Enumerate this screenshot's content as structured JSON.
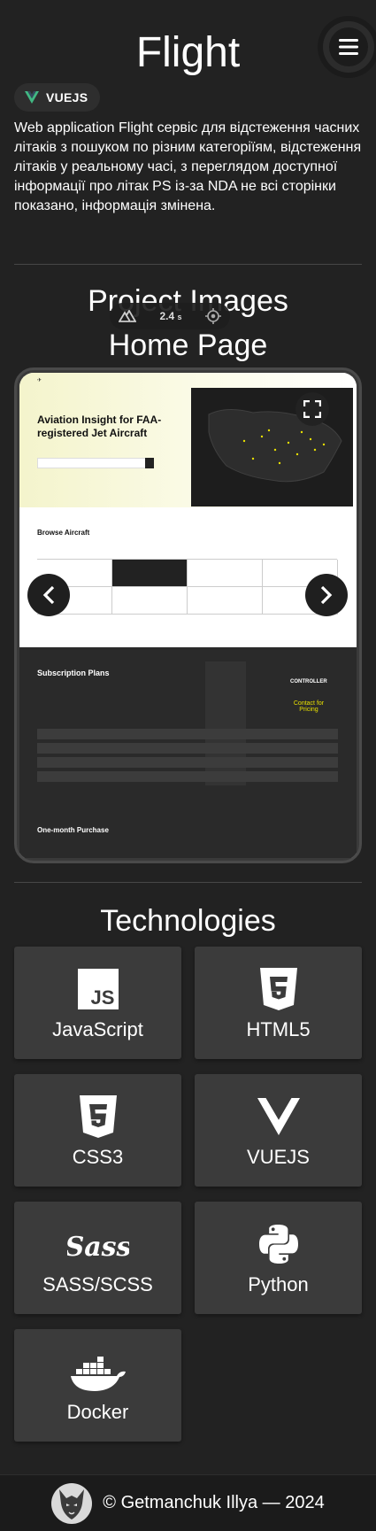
{
  "header": {
    "title": "Flight"
  },
  "tag": {
    "label": "VUEJS"
  },
  "description": "Web application Flight сервіс для відстеження часних літаків з пошуком по різним категоріїям, відстеження літаків у реальному часі, з переглядом доступної інформації про літак PS із-за NDA не всі сторінки показано, інформація змінена.",
  "sections": {
    "images_title": "Project Images",
    "slide_title": "Home Page",
    "tech_title": "Technologies"
  },
  "screenshot": {
    "hero_heading": "Aviation Insight for FAA-registered Jet Aircraft",
    "browse_title": "Browse Aircraft",
    "subscription_title": "Subscription Plans",
    "controller_label": "CONTROLLER",
    "contact_label": "Contact for Pricing",
    "one_month_title": "One-month Purchase"
  },
  "timer": {
    "value": "2.4",
    "unit": "s"
  },
  "technologies": [
    {
      "label": "JavaScript",
      "icon": "javascript-icon"
    },
    {
      "label": "HTML5",
      "icon": "html5-icon"
    },
    {
      "label": "CSS3",
      "icon": "css3-icon"
    },
    {
      "label": "VUEJS",
      "icon": "vuejs-icon"
    },
    {
      "label": "SASS/SCSS",
      "icon": "sass-icon"
    },
    {
      "label": "Python",
      "icon": "python-icon"
    },
    {
      "label": "Docker",
      "icon": "docker-icon"
    }
  ],
  "footer": {
    "copyright": "© Getmanchuk Illya — 2024"
  },
  "colors": {
    "background": "#222222",
    "card": "#3b3b3b",
    "vue": "#41b883",
    "accent": "#e8e000"
  }
}
